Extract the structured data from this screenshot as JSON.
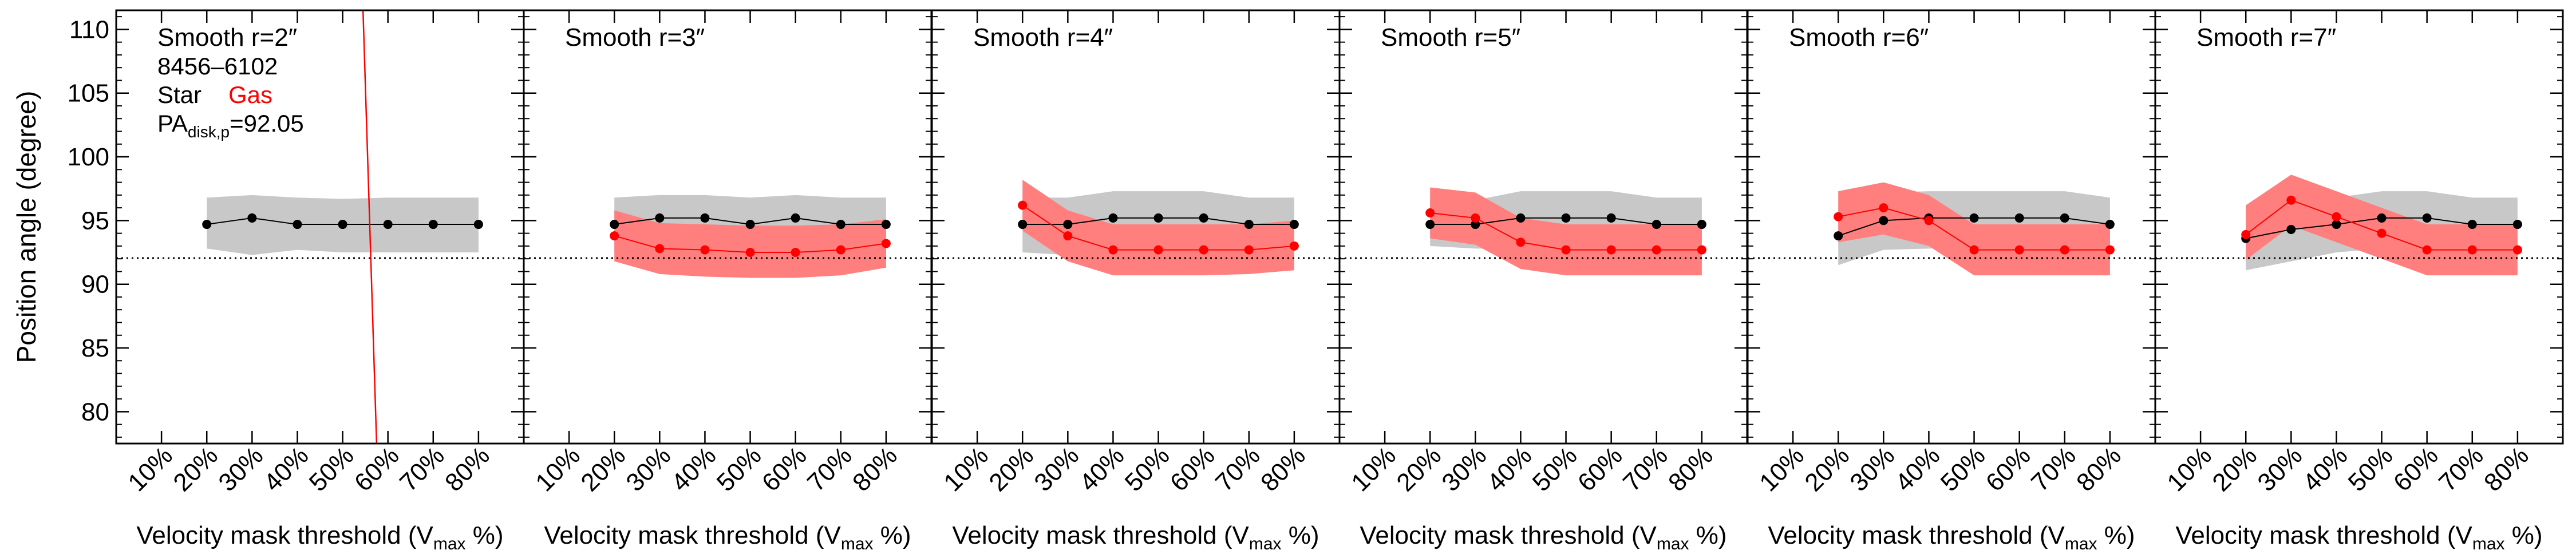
{
  "chart_data": {
    "type": "line",
    "ylabel": "Position angle (degree)",
    "ylim": [
      77.5,
      111.5
    ],
    "yticks": [
      80,
      85,
      90,
      95,
      100,
      105,
      110
    ],
    "xlim": [
      0,
      90
    ],
    "xticks": [
      10,
      20,
      30,
      40,
      50,
      60,
      70,
      80
    ],
    "xtick_labels": [
      "10%",
      "20%",
      "30%",
      "40%",
      "50%",
      "60%",
      "70%",
      "80%"
    ],
    "xlabel_prefix": "Velocity mask threshold (V",
    "xlabel_sub": "max",
    "xlabel_suffix": " %)",
    "reference_line": 92.05,
    "colors": {
      "star": "#000000",
      "gas": "#ff0000",
      "star_band": "#c8c8c8",
      "gas_band": "#ff7f7f"
    },
    "legend": {
      "plate_ifu": "8456–6102",
      "star_label": "Star",
      "gas_label": "Gas",
      "pa_prefix": "PA",
      "pa_sub": "disk,p",
      "pa_value": "=92.05"
    },
    "panels": [
      {
        "title": "Smooth r=2″",
        "x": [
          20,
          30,
          40,
          50,
          60,
          70,
          80
        ],
        "star": [
          94.7,
          95.2,
          94.7,
          94.7,
          94.7,
          94.7,
          94.7
        ],
        "star_lo": [
          92.8,
          92.3,
          92.7,
          92.5,
          92.5,
          92.5,
          92.5
        ],
        "star_hi": [
          96.8,
          97.0,
          96.8,
          96.7,
          96.8,
          96.8,
          96.8
        ],
        "gas": [],
        "gas_lo": [],
        "gas_hi": [],
        "gas_line": {
          "x1": 54.5,
          "y1": 111.5,
          "x2": 57.5,
          "y2": 77.5
        }
      },
      {
        "title": "Smooth r=3″",
        "x": [
          20,
          30,
          40,
          50,
          60,
          70,
          80
        ],
        "star": [
          94.7,
          95.2,
          95.2,
          94.7,
          95.2,
          94.7,
          94.7
        ],
        "star_lo": [
          92.5,
          92.5,
          92.5,
          92.3,
          92.5,
          92.3,
          92.5
        ],
        "star_hi": [
          96.8,
          97.0,
          97.0,
          96.8,
          97.0,
          96.8,
          96.8
        ],
        "gas": [
          93.8,
          92.8,
          92.7,
          92.5,
          92.5,
          92.7,
          93.2
        ],
        "gas_lo": [
          91.8,
          90.8,
          90.6,
          90.5,
          90.5,
          90.7,
          91.3
        ],
        "gas_hi": [
          95.8,
          94.8,
          94.7,
          94.6,
          94.6,
          94.7,
          95.1
        ]
      },
      {
        "title": "Smooth r=4″",
        "x": [
          20,
          30,
          40,
          50,
          60,
          70,
          80
        ],
        "star": [
          94.7,
          94.7,
          95.2,
          95.2,
          95.2,
          94.7,
          94.7
        ],
        "star_lo": [
          92.5,
          92.3,
          92.5,
          92.5,
          92.5,
          92.3,
          92.5
        ],
        "star_hi": [
          96.8,
          96.8,
          97.3,
          97.3,
          97.3,
          96.8,
          96.8
        ],
        "gas": [
          96.2,
          93.8,
          92.7,
          92.7,
          92.7,
          92.7,
          93.0
        ],
        "gas_lo": [
          94.2,
          91.8,
          90.7,
          90.7,
          90.7,
          90.8,
          91.1
        ],
        "gas_hi": [
          98.2,
          95.8,
          94.7,
          94.7,
          94.7,
          94.7,
          95.0
        ]
      },
      {
        "title": "Smooth r=5″",
        "x": [
          20,
          30,
          40,
          50,
          60,
          70,
          80
        ],
        "star": [
          94.7,
          94.7,
          95.2,
          95.2,
          95.2,
          94.7,
          94.7
        ],
        "star_lo": [
          93.0,
          92.8,
          92.8,
          92.8,
          92.8,
          92.8,
          92.8
        ],
        "star_hi": [
          96.8,
          96.6,
          97.3,
          97.3,
          97.3,
          96.8,
          96.8
        ],
        "gas": [
          95.6,
          95.2,
          93.3,
          92.7,
          92.7,
          92.7,
          92.7
        ],
        "gas_lo": [
          93.6,
          93.1,
          91.2,
          90.7,
          90.7,
          90.7,
          90.7
        ],
        "gas_hi": [
          97.6,
          97.2,
          95.2,
          94.7,
          94.7,
          94.7,
          94.7
        ]
      },
      {
        "title": "Smooth r=6″",
        "x": [
          20,
          30,
          40,
          50,
          60,
          70,
          80
        ],
        "star": [
          93.8,
          95.0,
          95.2,
          95.2,
          95.2,
          95.2,
          94.7
        ],
        "star_lo": [
          91.5,
          92.7,
          92.8,
          92.8,
          92.8,
          92.8,
          92.5
        ],
        "star_hi": [
          95.8,
          97.2,
          97.3,
          97.3,
          97.3,
          97.3,
          96.8
        ],
        "gas": [
          95.3,
          96.0,
          95.0,
          92.7,
          92.7,
          92.7,
          92.7
        ],
        "gas_lo": [
          93.3,
          93.9,
          93.0,
          90.7,
          90.7,
          90.7,
          90.7
        ],
        "gas_hi": [
          97.3,
          98.0,
          97.0,
          94.7,
          94.7,
          94.7,
          94.7
        ]
      },
      {
        "title": "Smooth r=7″",
        "x": [
          20,
          30,
          40,
          50,
          60,
          70,
          80
        ],
        "star": [
          93.6,
          94.3,
          94.7,
          95.2,
          95.2,
          94.7,
          94.7
        ],
        "star_lo": [
          91.1,
          91.8,
          92.5,
          92.8,
          92.8,
          92.5,
          92.5
        ],
        "star_hi": [
          95.6,
          96.3,
          96.8,
          97.3,
          97.3,
          96.8,
          96.8
        ],
        "gas": [
          93.9,
          96.6,
          95.3,
          94.0,
          92.7,
          92.7,
          92.7
        ],
        "gas_lo": [
          91.9,
          94.6,
          93.3,
          92.0,
          90.7,
          90.7,
          90.7
        ],
        "gas_hi": [
          96.2,
          98.6,
          97.3,
          96.0,
          94.7,
          94.7,
          94.7
        ]
      }
    ]
  }
}
